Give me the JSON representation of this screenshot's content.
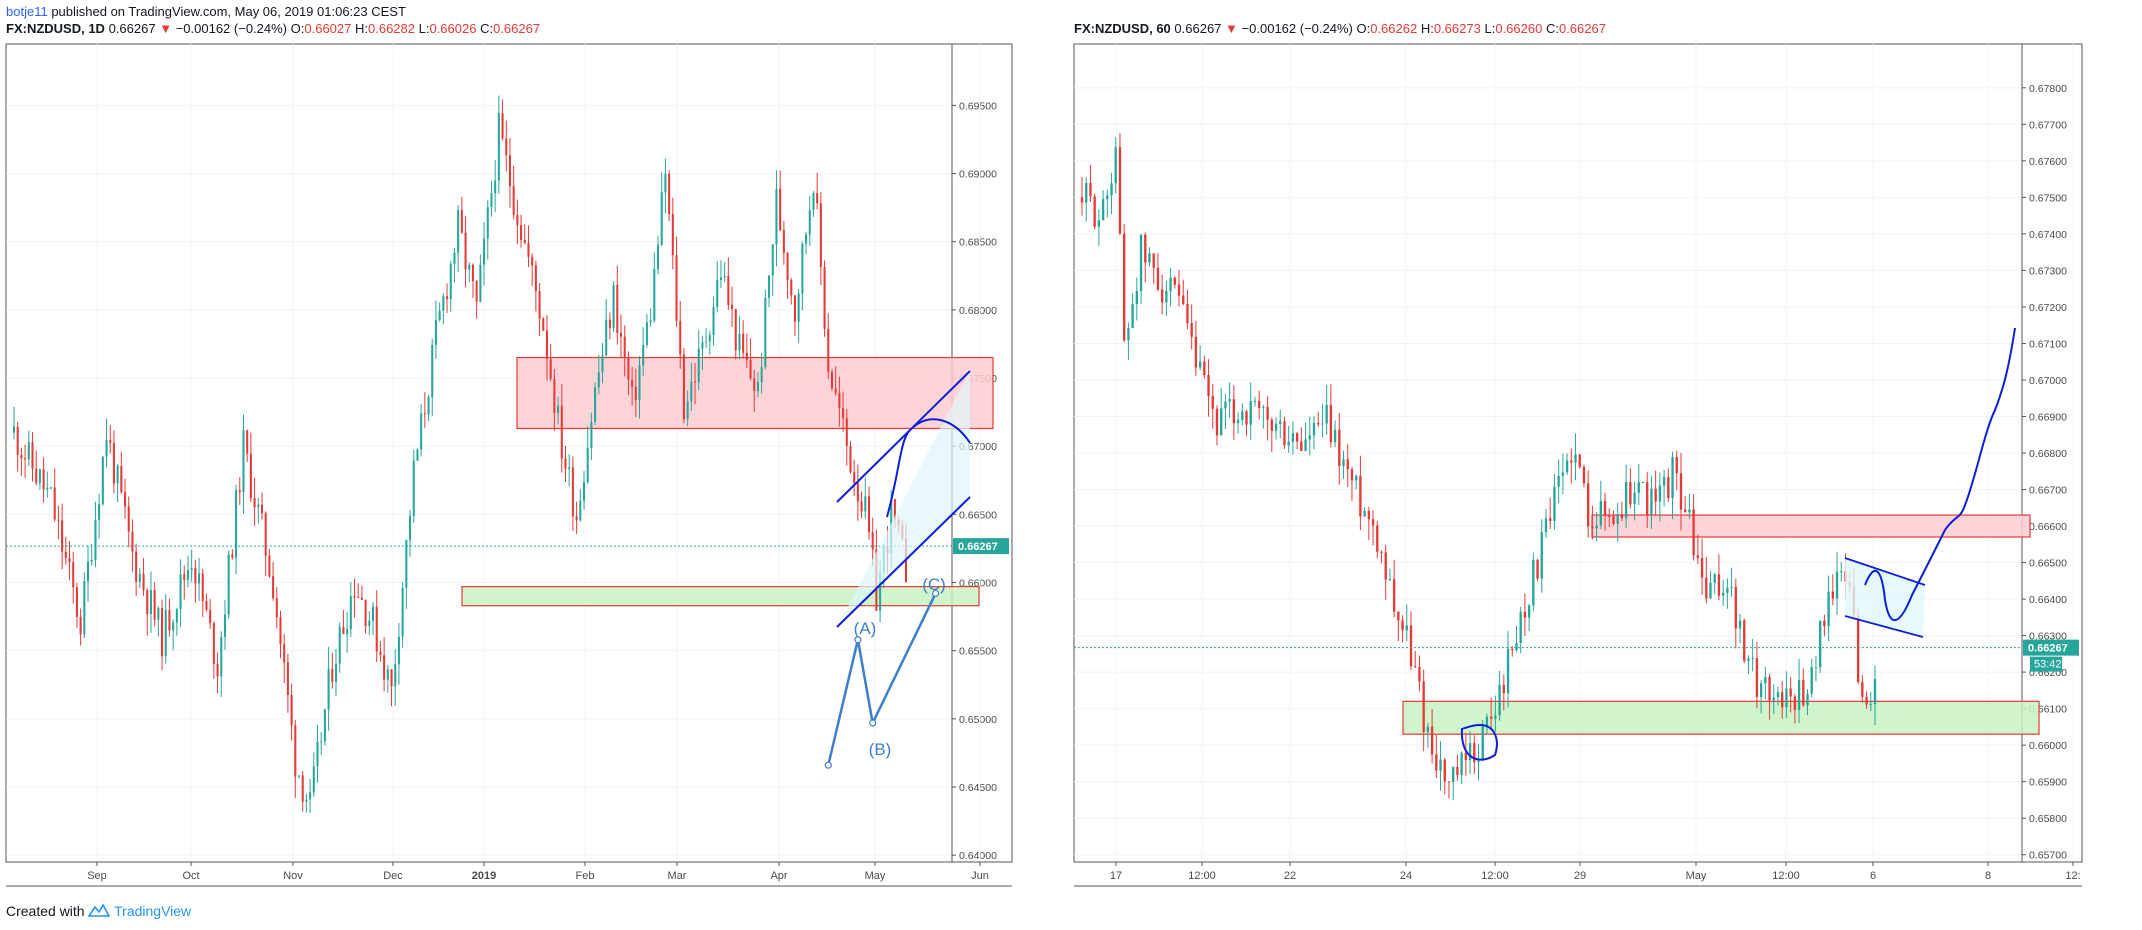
{
  "header": {
    "author": "botje11",
    "published_text": "published on TradingView.com, May 06, 2019 01:06:23 CEST"
  },
  "footer": {
    "created_with": "Created with",
    "brand": "TradingView"
  },
  "colors": {
    "up": "#26a69a",
    "down": "#e53935",
    "zone_red_fill": "#ffcdd2",
    "zone_green_fill": "#c8f2c2",
    "drawing_blue": "#0d1fd6",
    "wave_blue": "#3d7fc9",
    "price_line": "#26a69a"
  },
  "chart_data": [
    {
      "type": "candlestick",
      "symbol": "FX:NZDUSD, 1D",
      "price": "0.66267",
      "arrow": "▼",
      "change": "−0.00162 (−0.24%)",
      "ohlc": {
        "o": "0.66027",
        "h": "0.66282",
        "l": "0.66026",
        "c": "0.66267"
      },
      "ylim": [
        0.6395,
        0.6995
      ],
      "yticks": [
        "0.69500",
        "0.69000",
        "0.68500",
        "0.68000",
        "0.67500",
        "0.67000",
        "0.66500",
        "0.66000",
        "0.65500",
        "0.65000",
        "0.64500",
        "0.64000"
      ],
      "xticks": [
        "Sep",
        "Oct",
        "Nov",
        "Dec",
        "2019",
        "Feb",
        "Mar",
        "Apr",
        "May",
        "Jun"
      ],
      "current_price_label": "0.66267",
      "current_price": 0.66267,
      "candle_count": 190,
      "path": [
        [
          0,
          0.671
        ],
        [
          10,
          0.666
        ],
        [
          18,
          0.657
        ],
        [
          25,
          0.671
        ],
        [
          32,
          0.662
        ],
        [
          40,
          0.656
        ],
        [
          48,
          0.662
        ],
        [
          55,
          0.654
        ],
        [
          62,
          0.67
        ],
        [
          70,
          0.66
        ],
        [
          76,
          0.647
        ],
        [
          80,
          0.6435
        ],
        [
          86,
          0.654
        ],
        [
          92,
          0.66
        ],
        [
          97,
          0.657
        ],
        [
          102,
          0.652
        ],
        [
          108,
          0.668
        ],
        [
          114,
          0.678
        ],
        [
          120,
          0.686
        ],
        [
          125,
          0.68
        ],
        [
          131,
          0.693
        ],
        [
          137,
          0.686
        ],
        [
          143,
          0.679
        ],
        [
          148,
          0.67
        ],
        [
          152,
          0.665
        ],
        [
          157,
          0.674
        ],
        [
          162,
          0.681
        ],
        [
          167,
          0.673
        ],
        [
          172,
          0.68
        ],
        [
          176,
          0.69
        ],
        [
          181,
          0.673
        ],
        [
          186,
          0.677
        ],
        [
          191,
          0.683
        ],
        [
          196,
          0.677
        ],
        [
          201,
          0.674
        ],
        [
          206,
          0.688
        ],
        [
          211,
          0.68
        ],
        [
          216,
          0.69
        ],
        [
          220,
          0.676
        ],
        [
          225,
          0.67
        ],
        [
          230,
          0.665
        ],
        [
          233,
          0.659
        ],
        [
          237,
          0.665
        ],
        [
          241,
          0.661
        ]
      ],
      "zones": [
        {
          "kind": "resistance",
          "low": 0.6713,
          "high": 0.6765
        },
        {
          "kind": "support",
          "low": 0.6583,
          "high": 0.6597
        }
      ],
      "wave_labels": [
        "(A)",
        "(B)",
        "(C)"
      ],
      "waves": [
        {
          "x": 220,
          "y": 0.6466
        },
        {
          "x": 228,
          "y": 0.6558
        },
        {
          "x": 232,
          "y": 0.6497
        },
        {
          "x": 249,
          "y": 0.6592
        }
      ]
    },
    {
      "type": "candlestick",
      "symbol": "FX:NZDUSD, 60",
      "price": "0.66267",
      "arrow": "▼",
      "change": "−0.00162 (−0.24%)",
      "ohlc": {
        "o": "0.66262",
        "h": "0.66273",
        "l": "0.66260",
        "c": "0.66267"
      },
      "ylim": [
        0.6568,
        0.6792
      ],
      "yticks": [
        "0.67800",
        "0.67700",
        "0.67600",
        "0.67500",
        "0.67400",
        "0.67300",
        "0.67200",
        "0.67100",
        "0.67000",
        "0.66900",
        "0.66800",
        "0.66700",
        "0.66600",
        "0.66500",
        "0.66400",
        "0.66300",
        "0.66200",
        "0.66100",
        "0.66000",
        "0.65900",
        "0.65800",
        "0.65700"
      ],
      "xticks": [
        "17",
        "12:00",
        "22",
        "24",
        "12:00",
        "29",
        "May",
        "12:00",
        "6",
        "8",
        "12:"
      ],
      "current_price_label": "0.66267",
      "countdown_label": "53:42",
      "current_price": 0.66267,
      "candle_count": 190,
      "path": [
        [
          0,
          0.675
        ],
        [
          5,
          0.6745
        ],
        [
          8,
          0.6765
        ],
        [
          10,
          0.671
        ],
        [
          14,
          0.6735
        ],
        [
          18,
          0.6728
        ],
        [
          23,
          0.672
        ],
        [
          28,
          0.67
        ],
        [
          32,
          0.6688
        ],
        [
          38,
          0.6692
        ],
        [
          44,
          0.6688
        ],
        [
          52,
          0.6682
        ],
        [
          58,
          0.6688
        ],
        [
          64,
          0.6672
        ],
        [
          70,
          0.6658
        ],
        [
          74,
          0.664
        ],
        [
          78,
          0.6625
        ],
        [
          82,
          0.6603
        ],
        [
          87,
          0.6588
        ],
        [
          93,
          0.6598
        ],
        [
          98,
          0.661
        ],
        [
          104,
          0.6635
        ],
        [
          110,
          0.6658
        ],
        [
          116,
          0.6682
        ],
        [
          120,
          0.6665
        ],
        [
          126,
          0.6662
        ],
        [
          131,
          0.6672
        ],
        [
          136,
          0.6665
        ],
        [
          140,
          0.6675
        ],
        [
          143,
          0.6665
        ],
        [
          148,
          0.664
        ],
        [
          153,
          0.6645
        ],
        [
          158,
          0.662
        ],
        [
          163,
          0.6615
        ],
        [
          168,
          0.6613
        ],
        [
          173,
          0.6618
        ],
        [
          177,
          0.6643
        ],
        [
          182,
          0.6645
        ],
        [
          185,
          0.661
        ],
        [
          188,
          0.6618
        ]
      ],
      "zones": [
        {
          "kind": "resistance",
          "low": 0.6657,
          "high": 0.6663
        },
        {
          "kind": "support",
          "low": 0.6603,
          "high": 0.6612
        }
      ]
    }
  ]
}
